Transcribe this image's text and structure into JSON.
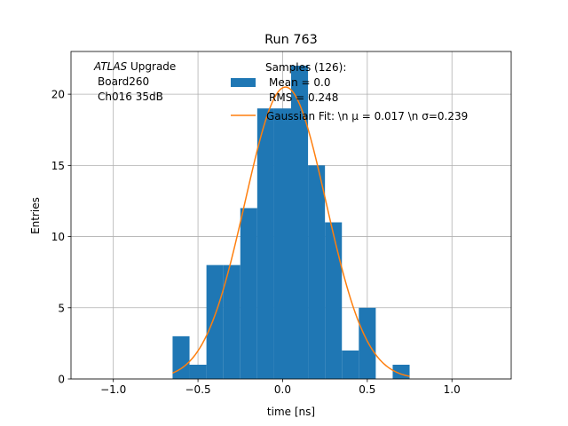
{
  "chart_data": {
    "type": "bar",
    "title": "Run 763",
    "xlabel": "time [ns]",
    "ylabel": "Entries",
    "xlim": [
      -1.25,
      1.35
    ],
    "ylim": [
      0,
      23
    ],
    "grid": true,
    "x_ticks": [
      -1.0,
      -0.5,
      0.0,
      0.5,
      1.0
    ],
    "x_tick_labels": [
      "−1.0",
      "−0.5",
      "0.0",
      "0.5",
      "1.0"
    ],
    "y_ticks": [
      0,
      5,
      10,
      15,
      20
    ],
    "y_tick_labels": [
      "0",
      "5",
      "10",
      "15",
      "20"
    ],
    "annotation": {
      "line1_italic": "ATLAS",
      "line1_rest": " Upgrade",
      "line2": "Board260",
      "line3": "Ch016 35dB"
    },
    "histogram": {
      "name": "Samples (126):",
      "name_line2": "Mean = 0.0",
      "name_line3": "RMS = 0.248",
      "color": "#1f77b4",
      "bin_edges": [
        -0.65,
        -0.55,
        -0.45,
        -0.35,
        -0.25,
        -0.15,
        -0.05,
        0.05,
        0.15,
        0.25,
        0.35,
        0.45,
        0.55,
        0.65,
        0.75
      ],
      "counts": [
        3,
        1,
        8,
        8,
        12,
        19,
        19,
        22,
        15,
        11,
        2,
        5,
        0,
        1
      ]
    },
    "fit": {
      "name": "Gaussian Fit: \\n μ = 0.017 \\n σ=0.239",
      "color": "#ff7f0e",
      "mu": 0.017,
      "sigma": 0.239,
      "amplitude": 20.5,
      "x_range": [
        -0.65,
        0.75
      ]
    },
    "legend_position": "top-center"
  }
}
